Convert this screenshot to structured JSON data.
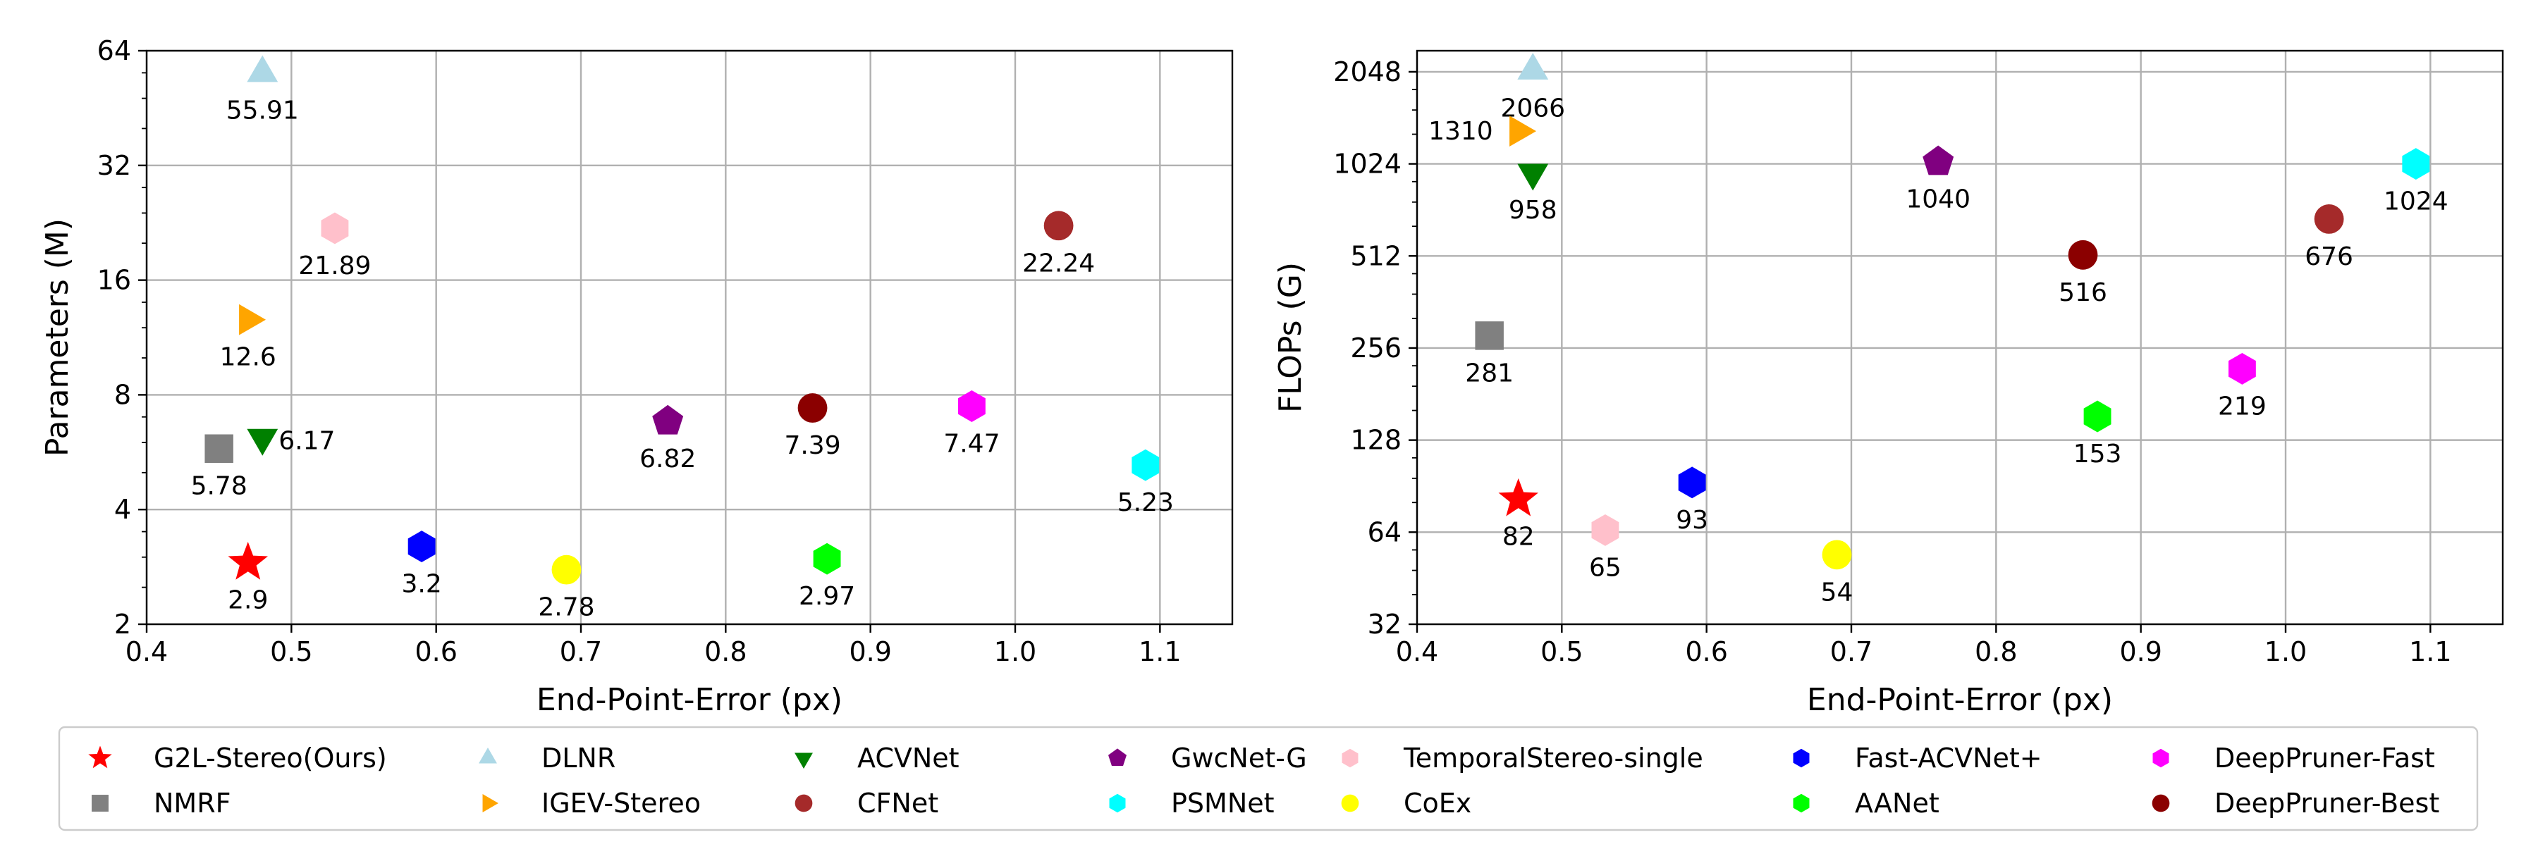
{
  "charts": [
    {
      "x_label": "End-Point-Error (px)",
      "y_label": "Parameters (M)"
    },
    {
      "x_label": "End-Point-Error (px)",
      "y_label": "FLOPs (G)"
    }
  ],
  "legend": [
    {
      "name": "G2L-Stereo(Ours)",
      "color": "#ff0000",
      "marker": "star"
    },
    {
      "name": "NMRF",
      "color": "#808080",
      "marker": "square"
    },
    {
      "name": "DLNR",
      "color": "#add8e6",
      "marker": "triangle-up"
    },
    {
      "name": "IGEV-Stereo",
      "color": "#ffa500",
      "marker": "triangle-right"
    },
    {
      "name": "ACVNet",
      "color": "#008000",
      "marker": "triangle-down"
    },
    {
      "name": "CFNet",
      "color": "#a52a2a",
      "marker": "circle"
    },
    {
      "name": "GwcNet-G",
      "color": "#800080",
      "marker": "pentagon"
    },
    {
      "name": "PSMNet",
      "color": "#00ffff",
      "marker": "hexagon"
    },
    {
      "name": "TemporalStereo-single",
      "color": "#ffc0cb",
      "marker": "hexagon"
    },
    {
      "name": "CoEx",
      "color": "#ffff00",
      "marker": "circle"
    },
    {
      "name": "Fast-ACVNet+",
      "color": "#0000ff",
      "marker": "hexagon"
    },
    {
      "name": "AANet",
      "color": "#00ff00",
      "marker": "hexagon"
    },
    {
      "name": "DeepPruner-Fast",
      "color": "#ff00ff",
      "marker": "hexagon"
    },
    {
      "name": "DeepPruner-Best",
      "color": "#8b0000",
      "marker": "circle"
    }
  ],
  "chart_data": [
    {
      "type": "scatter",
      "xlabel": "End-Point-Error (px)",
      "ylabel": "Parameters (M)",
      "xlim": [
        0.4,
        1.15
      ],
      "ylim": [
        2,
        64
      ],
      "yscale": "log2",
      "xticks": [
        "0.4",
        "0.5",
        "0.6",
        "0.7",
        "0.8",
        "0.9",
        "1.0",
        "1.1"
      ],
      "yticks": [
        "2",
        "4",
        "8",
        "16",
        "32",
        "64"
      ],
      "grid": true,
      "points": [
        {
          "series": "G2L-Stereo(Ours)",
          "x": 0.47,
          "y": 2.9,
          "label": "2.9"
        },
        {
          "series": "NMRF",
          "x": 0.45,
          "y": 5.78,
          "label": "5.78"
        },
        {
          "series": "DLNR",
          "x": 0.48,
          "y": 55.91,
          "label": "55.91"
        },
        {
          "series": "IGEV-Stereo",
          "x": 0.47,
          "y": 12.6,
          "label": "12.6"
        },
        {
          "series": "ACVNet",
          "x": 0.48,
          "y": 6.17,
          "label": "6.17"
        },
        {
          "series": "CFNet",
          "x": 1.03,
          "y": 22.24,
          "label": "22.24"
        },
        {
          "series": "GwcNet-G",
          "x": 0.76,
          "y": 6.82,
          "label": "6.82"
        },
        {
          "series": "PSMNet",
          "x": 1.09,
          "y": 5.23,
          "label": "5.23"
        },
        {
          "series": "TemporalStereo-single",
          "x": 0.53,
          "y": 21.89,
          "label": "21.89"
        },
        {
          "series": "CoEx",
          "x": 0.69,
          "y": 2.78,
          "label": "2.78"
        },
        {
          "series": "Fast-ACVNet+",
          "x": 0.59,
          "y": 3.2,
          "label": "3.2"
        },
        {
          "series": "AANet",
          "x": 0.87,
          "y": 2.97,
          "label": "2.97"
        },
        {
          "series": "DeepPruner-Fast",
          "x": 0.97,
          "y": 7.47,
          "label": "7.47"
        },
        {
          "series": "DeepPruner-Best",
          "x": 0.86,
          "y": 7.39,
          "label": "7.39"
        }
      ]
    },
    {
      "type": "scatter",
      "xlabel": "End-Point-Error (px)",
      "ylabel": "FLOPs (G)",
      "xlim": [
        0.4,
        1.15
      ],
      "ylim": [
        32,
        2400
      ],
      "yscale": "log2",
      "xticks": [
        "0.4",
        "0.5",
        "0.6",
        "0.7",
        "0.8",
        "0.9",
        "1.0",
        "1.1"
      ],
      "yticks": [
        "32",
        "64",
        "128",
        "256",
        "512",
        "1024",
        "2048"
      ],
      "grid": true,
      "points": [
        {
          "series": "G2L-Stereo(Ours)",
          "x": 0.47,
          "y": 82,
          "label": "82"
        },
        {
          "series": "NMRF",
          "x": 0.45,
          "y": 281,
          "label": "281"
        },
        {
          "series": "DLNR",
          "x": 0.48,
          "y": 2066,
          "label": "2066"
        },
        {
          "series": "IGEV-Stereo",
          "x": 0.47,
          "y": 1310,
          "label": "1310"
        },
        {
          "series": "ACVNet",
          "x": 0.48,
          "y": 958,
          "label": "958"
        },
        {
          "series": "CFNet",
          "x": 1.03,
          "y": 676,
          "label": "676"
        },
        {
          "series": "GwcNet-G",
          "x": 0.76,
          "y": 1040,
          "label": "1040"
        },
        {
          "series": "PSMNet",
          "x": 1.09,
          "y": 1024,
          "label": "1024"
        },
        {
          "series": "TemporalStereo-single",
          "x": 0.53,
          "y": 65,
          "label": "65"
        },
        {
          "series": "CoEx",
          "x": 0.69,
          "y": 54,
          "label": "54"
        },
        {
          "series": "Fast-ACVNet+",
          "x": 0.59,
          "y": 93,
          "label": "93"
        },
        {
          "series": "AANet",
          "x": 0.87,
          "y": 153,
          "label": "153"
        },
        {
          "series": "DeepPruner-Fast",
          "x": 0.97,
          "y": 219,
          "label": "219"
        },
        {
          "series": "DeepPruner-Best",
          "x": 0.86,
          "y": 516,
          "label": "516"
        }
      ]
    }
  ]
}
